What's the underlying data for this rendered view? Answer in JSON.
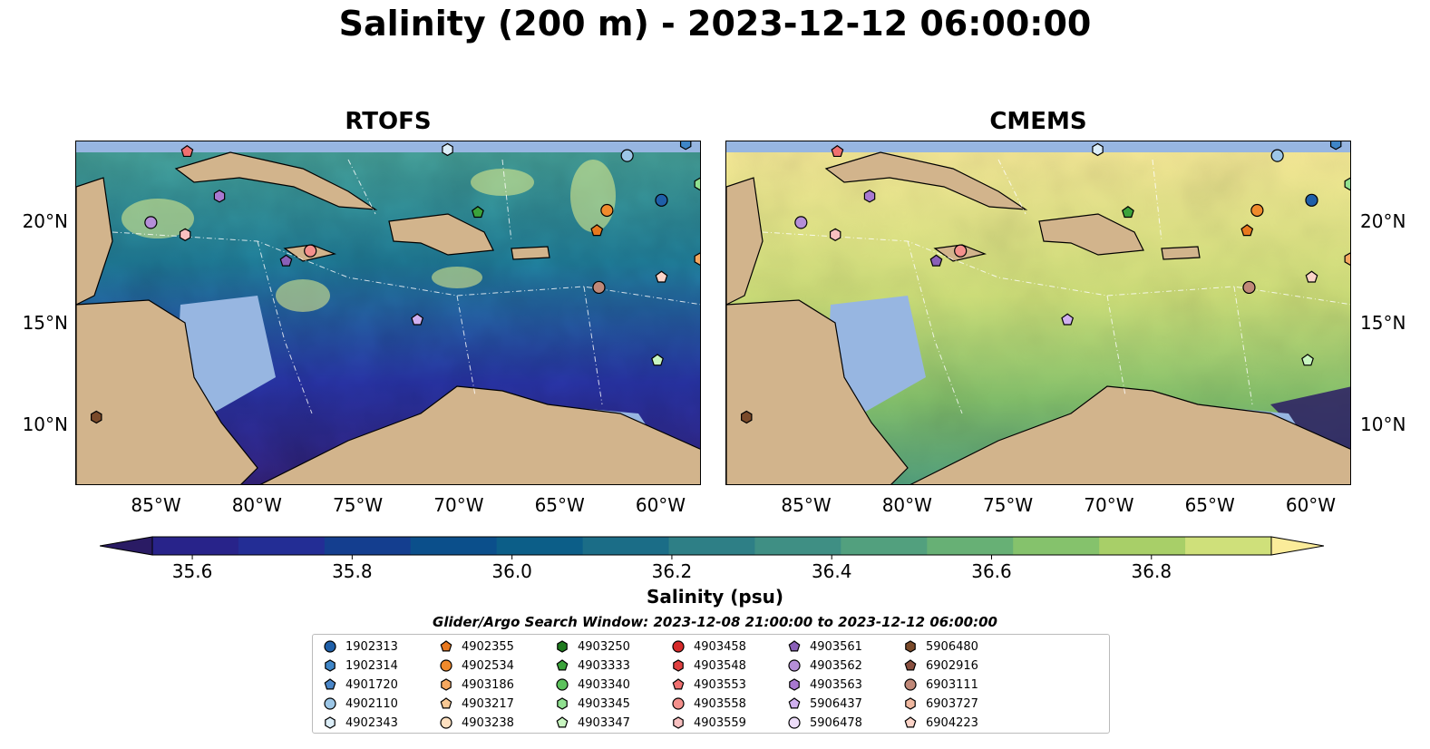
{
  "title": "Salinity (200 m) - 2023-12-12 06:00:00",
  "panels": [
    {
      "name": "RTOFS"
    },
    {
      "name": "CMEMS"
    }
  ],
  "map": {
    "lon_range": [
      -89,
      -58
    ],
    "lat_range": [
      7,
      24
    ],
    "lat_ticks": [
      {
        "value": 20,
        "label": "20°N"
      },
      {
        "value": 15,
        "label": "15°N"
      },
      {
        "value": 10,
        "label": "10°N"
      }
    ],
    "lon_ticks": [
      {
        "value": -85,
        "label": "85°W"
      },
      {
        "value": -80,
        "label": "80°W"
      },
      {
        "value": -75,
        "label": "75°W"
      },
      {
        "value": -70,
        "label": "70°W"
      },
      {
        "value": -65,
        "label": "65°W"
      },
      {
        "value": -60,
        "label": "60°W"
      }
    ],
    "colors": {
      "land": "#d2b48c",
      "shallow": "#97b6e1",
      "coast": "#000000"
    }
  },
  "colorbar": {
    "label": "Salinity (psu)",
    "min": 35.55,
    "max": 36.95,
    "step": 0.1,
    "extend": "both",
    "ticks": [
      {
        "value": 35.6,
        "label": "35.6"
      },
      {
        "value": 35.8,
        "label": "35.8"
      },
      {
        "value": 36.0,
        "label": "36.0"
      },
      {
        "value": 36.2,
        "label": "36.2"
      },
      {
        "value": 36.4,
        "label": "36.4"
      },
      {
        "value": 36.6,
        "label": "36.6"
      },
      {
        "value": 36.8,
        "label": "36.8"
      }
    ],
    "colors": [
      "#2a1b64",
      "#28238a",
      "#232d95",
      "#143e8f",
      "#0b4f8b",
      "#0c5e88",
      "#1b6d87",
      "#2e7f86",
      "#3f8f84",
      "#52a07e",
      "#67b075",
      "#85c26c",
      "#a8cf68",
      "#cfe07a",
      "#fbec9a"
    ]
  },
  "search_window": "Glider/Argo Search Window: 2023-12-08 21:00:00 to 2023-12-12 06:00:00",
  "floats": [
    {
      "id": "1902313",
      "color": "#1f5fa8",
      "marker": "circle",
      "lon": -60.0,
      "lat": 21.1
    },
    {
      "id": "1902314",
      "color": "#3f86c8",
      "marker": "hexagon",
      "lon": -58.8,
      "lat": 23.9
    },
    {
      "id": "4901720",
      "color": "#4a86c8",
      "marker": "pentagon",
      "lon": null,
      "lat": null
    },
    {
      "id": "4902110",
      "color": "#9cc6e6",
      "marker": "circle",
      "lon": -61.7,
      "lat": 23.3
    },
    {
      "id": "4902343",
      "color": "#dceef8",
      "marker": "hexagon",
      "lon": -70.6,
      "lat": 23.6
    },
    {
      "id": "4902355",
      "color": "#e8781e",
      "marker": "pentagon",
      "lon": -63.2,
      "lat": 19.6
    },
    {
      "id": "4902534",
      "color": "#f08a2c",
      "marker": "circle",
      "lon": -62.7,
      "lat": 20.6
    },
    {
      "id": "4903186",
      "color": "#f6a860",
      "marker": "hexagon",
      "lon": -58.1,
      "lat": 18.2
    },
    {
      "id": "4903217",
      "color": "#f8c894",
      "marker": "pentagon",
      "lon": null,
      "lat": null
    },
    {
      "id": "4903238",
      "color": "#fde0c0",
      "marker": "circle",
      "lon": null,
      "lat": null
    },
    {
      "id": "4903250",
      "color": "#1e7a1e",
      "marker": "hexagon",
      "lon": null,
      "lat": null
    },
    {
      "id": "4903333",
      "color": "#3ba33b",
      "marker": "pentagon",
      "lon": -69.1,
      "lat": 20.5
    },
    {
      "id": "4903340",
      "color": "#5cc25c",
      "marker": "circle",
      "lon": null,
      "lat": null
    },
    {
      "id": "4903345",
      "color": "#90e090",
      "marker": "hexagon",
      "lon": -58.1,
      "lat": 21.9
    },
    {
      "id": "4903347",
      "color": "#c8f5c0",
      "marker": "pentagon",
      "lon": -60.2,
      "lat": 13.2
    },
    {
      "id": "4903458",
      "color": "#d62a2a",
      "marker": "circle",
      "lon": null,
      "lat": null
    },
    {
      "id": "4903548",
      "color": "#e04040",
      "marker": "hexagon",
      "lon": null,
      "lat": null
    },
    {
      "id": "4903553",
      "color": "#f07070",
      "marker": "pentagon",
      "lon": -83.5,
      "lat": 23.5
    },
    {
      "id": "4903558",
      "color": "#f4908c",
      "marker": "circle",
      "lon": -77.4,
      "lat": 18.6
    },
    {
      "id": "4903559",
      "color": "#f8c0c0",
      "marker": "hexagon",
      "lon": -83.6,
      "lat": 19.4
    },
    {
      "id": "4903561",
      "color": "#8a60b8",
      "marker": "pentagon",
      "lon": -78.6,
      "lat": 18.1
    },
    {
      "id": "4903562",
      "color": "#b58ed8",
      "marker": "circle",
      "lon": -85.3,
      "lat": 20.0
    },
    {
      "id": "4903563",
      "color": "#a878d0",
      "marker": "hexagon",
      "lon": -81.9,
      "lat": 21.3
    },
    {
      "id": "5906437",
      "color": "#d0b0f0",
      "marker": "pentagon",
      "lon": -72.1,
      "lat": 15.2
    },
    {
      "id": "5906478",
      "color": "#ecdcf8",
      "marker": "circle",
      "lon": null,
      "lat": null
    },
    {
      "id": "5906480",
      "color": "#7a4a2a",
      "marker": "hexagon",
      "lon": -88.0,
      "lat": 10.4
    },
    {
      "id": "6902916",
      "color": "#8a5040",
      "marker": "pentagon",
      "lon": null,
      "lat": null
    },
    {
      "id": "6903111",
      "color": "#c08878",
      "marker": "circle",
      "lon": -63.1,
      "lat": 16.8
    },
    {
      "id": "6903727",
      "color": "#f0b8a0",
      "marker": "hexagon",
      "lon": null,
      "lat": null
    },
    {
      "id": "6904223",
      "color": "#fcd4c8",
      "marker": "pentagon",
      "lon": -60.0,
      "lat": 17.3
    }
  ]
}
